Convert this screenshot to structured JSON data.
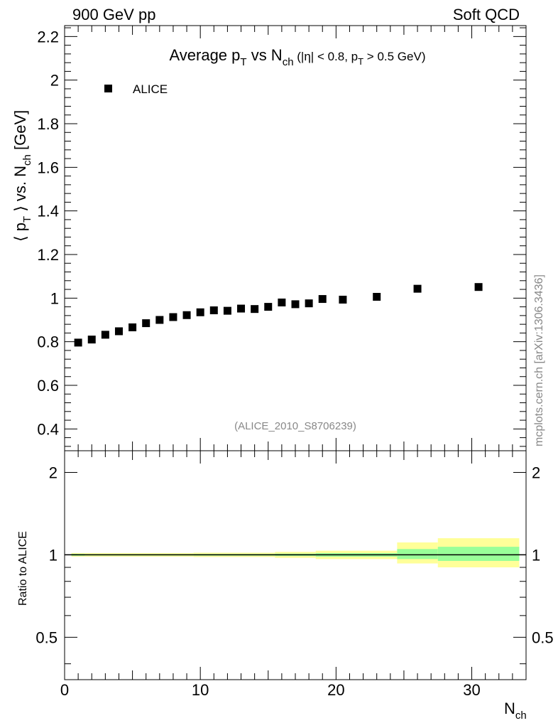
{
  "header": {
    "left": "900 GeV pp",
    "right": "Soft QCD"
  },
  "side_label": "mcplots.cern.ch [arXiv:1306.3436]",
  "colors": {
    "marker": "#000000",
    "band_outer": "#ffff99",
    "band_inner": "#99ff99",
    "reference_line": "#000000",
    "analysis_id": "#888888"
  },
  "chart_data": [
    {
      "type": "scatter",
      "title": {
        "main": "Average p",
        "main_sub": "T",
        "mid": " vs N",
        "mid_sub": "ch",
        "cut": " (|η| < 0.8, p",
        "cut_sub": "T",
        "cut_tail": " > 0.5 GeV)"
      },
      "ylabel": {
        "a": "⟨ p",
        "a_sub": "T",
        "b": " ⟩ vs. N",
        "b_sub": "ch",
        "c": " [GeV]"
      },
      "xlim": [
        0,
        34
      ],
      "ylim": [
        0.3,
        2.25
      ],
      "y_ticks": [
        "0.4",
        "0.6",
        "0.8",
        "1",
        "1.2",
        "1.4",
        "1.6",
        "1.8",
        "2",
        "2.2"
      ],
      "legend": {
        "position": "top-left",
        "entries": [
          "ALICE"
        ]
      },
      "annotation": "(ALICE_2010_S8706239)",
      "series": [
        {
          "name": "ALICE",
          "marker": "square",
          "x": [
            1,
            2,
            3,
            4,
            5,
            6,
            7,
            8,
            9,
            10,
            11,
            12,
            13,
            14,
            15,
            16,
            17,
            18,
            19,
            20.5,
            23,
            26,
            30.5
          ],
          "y": [
            0.796,
            0.81,
            0.832,
            0.848,
            0.866,
            0.885,
            0.9,
            0.913,
            0.922,
            0.935,
            0.944,
            0.942,
            0.952,
            0.95,
            0.96,
            0.98,
            0.972,
            0.976,
            0.996,
            0.993,
            1.006,
            1.043,
            1.051
          ]
        }
      ]
    },
    {
      "type": "area",
      "ylabel": "Ratio to ALICE",
      "xlabel": {
        "main": "N",
        "sub": "ch"
      },
      "xlim": [
        0,
        34
      ],
      "ylim": [
        0.35,
        2.4
      ],
      "log_y": true,
      "x_ticks": [
        "0",
        "10",
        "20",
        "30"
      ],
      "y_ticks": [
        "0.5",
        "1",
        "2"
      ],
      "reference": 1,
      "bands": [
        {
          "x_range": [
            0.5,
            1.5
          ],
          "outer": [
            0.985,
            1.015
          ],
          "inner": [
            0.992,
            1.008
          ]
        },
        {
          "x_range": [
            1.5,
            9.5
          ],
          "outer": [
            0.985,
            1.015
          ],
          "inner": [
            0.994,
            1.006
          ]
        },
        {
          "x_range": [
            9.5,
            15.5
          ],
          "outer": [
            0.982,
            1.018
          ],
          "inner": [
            0.993,
            1.007
          ]
        },
        {
          "x_range": [
            15.5,
            18.5
          ],
          "outer": [
            0.975,
            1.025
          ],
          "inner": [
            0.99,
            1.01
          ]
        },
        {
          "x_range": [
            18.5,
            24.5
          ],
          "outer": [
            0.965,
            1.035
          ],
          "inner": [
            0.985,
            1.015
          ]
        },
        {
          "x_range": [
            24.5,
            27.5
          ],
          "outer": [
            0.93,
            1.11
          ],
          "inner": [
            0.965,
            1.05
          ]
        },
        {
          "x_range": [
            27.5,
            33.5
          ],
          "outer": [
            0.9,
            1.15
          ],
          "inner": [
            0.95,
            1.07
          ]
        }
      ]
    }
  ]
}
